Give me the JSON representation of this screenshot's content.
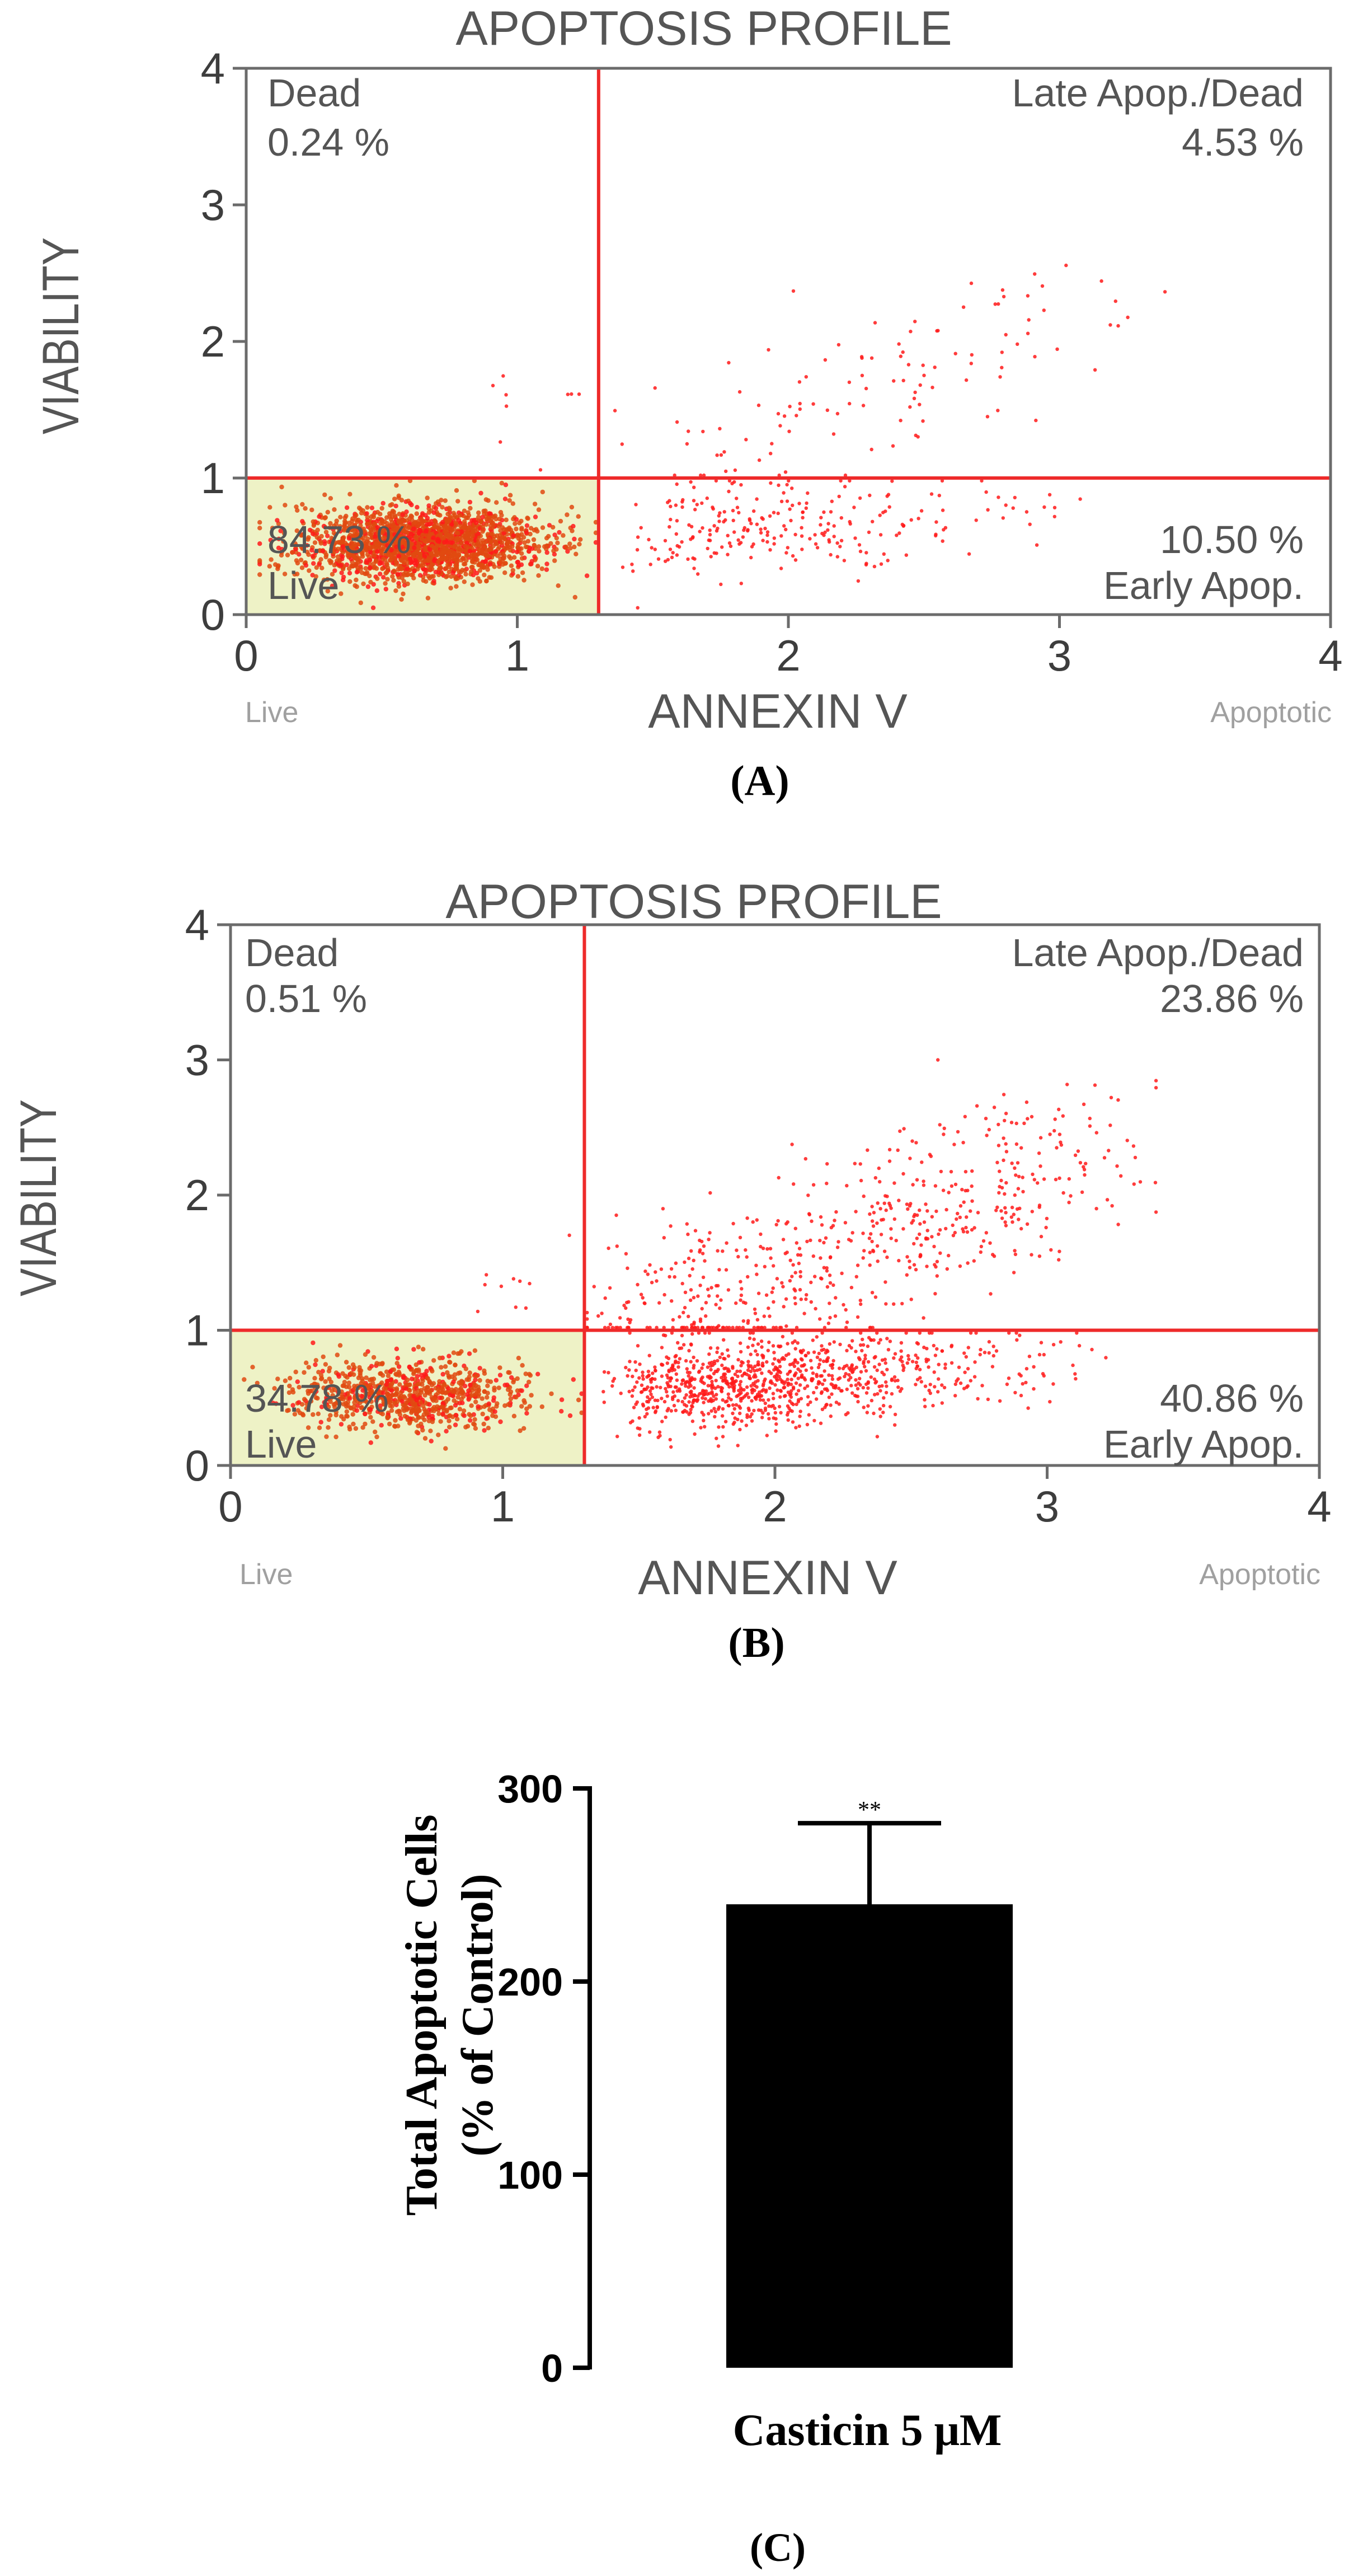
{
  "colors": {
    "frame": "#6b6b6b",
    "quadrant_line": "#ee2a2a",
    "dot": "#ff1a1a",
    "dense_dot": "#e04a10",
    "live_fill": "#eef2c6",
    "label_text": "#555555",
    "tick_text": "#3d3d3d",
    "bar": "#000000"
  },
  "chart_data": [
    {
      "type": "scatter",
      "panel_label": "(A)",
      "title": "APOPTOSIS PROFILE",
      "xlabel": "ANNEXIN V",
      "ylabel": "VIABILITY",
      "xlim": [
        0,
        4
      ],
      "ylim": [
        0,
        4
      ],
      "xticks": [
        "0",
        "1",
        "2",
        "3",
        "4"
      ],
      "yticks": [
        "0",
        "1",
        "2",
        "3",
        "4"
      ],
      "x_axis_left_caption": "Live",
      "x_axis_right_caption": "Apoptotic",
      "quadrant_x": 1.3,
      "quadrant_y": 1.0,
      "quadrants": {
        "dead": {
          "name": "Dead",
          "value": "0.24 %"
        },
        "late": {
          "name": "Late Apop./Dead",
          "value": "4.53 %"
        },
        "live": {
          "name": "Live",
          "value": "84.73 %"
        },
        "early": {
          "name": "Early Apop.",
          "value": "10.50 %"
        }
      }
    },
    {
      "type": "scatter",
      "panel_label": "(B)",
      "title": "APOPTOSIS PROFILE",
      "xlabel": "ANNEXIN V",
      "ylabel": "VIABILITY",
      "xlim": [
        0,
        4
      ],
      "ylim": [
        0,
        4
      ],
      "xticks": [
        "0",
        "1",
        "2",
        "3",
        "4"
      ],
      "yticks": [
        "0",
        "1",
        "2",
        "3",
        "4"
      ],
      "x_axis_left_caption": "Live",
      "x_axis_right_caption": "Apoptotic",
      "quadrant_x": 1.3,
      "quadrant_y": 1.0,
      "quadrants": {
        "dead": {
          "name": "Dead",
          "value": "0.51 %"
        },
        "late": {
          "name": "Late Apop./Dead",
          "value": "23.86 %"
        },
        "live": {
          "name": "Live",
          "value": "34.78 %"
        },
        "early": {
          "name": "Early Apop.",
          "value": "40.86 %"
        }
      }
    },
    {
      "type": "bar",
      "panel_label": "(C)",
      "categories": [
        "Casticin 5 μM"
      ],
      "values": [
        240
      ],
      "error_upper": [
        282
      ],
      "significance": "**",
      "ylabel_line1": "Total Apoptotic Cells",
      "ylabel_line2": "(% of Control)",
      "ylim": [
        0,
        300
      ],
      "yticks": [
        0,
        100,
        200,
        300
      ]
    }
  ]
}
